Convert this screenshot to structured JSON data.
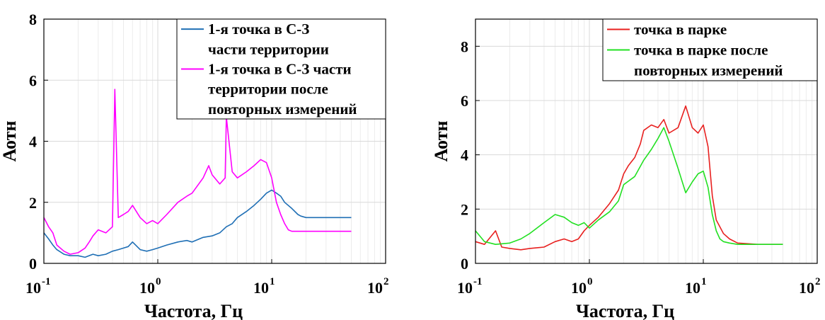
{
  "chart_data": [
    {
      "type": "line",
      "xlabel": "Частота, Гц",
      "ylabel": "Аотн",
      "xscale": "log",
      "xlim": [
        0.1,
        100
      ],
      "ylim": [
        0,
        8
      ],
      "grid": true,
      "legend_position": "top-right",
      "x_ticks": [
        {
          "base": "10",
          "exp": "-1",
          "value": 0.1
        },
        {
          "base": "10",
          "exp": "0",
          "value": 1
        },
        {
          "base": "10",
          "exp": "1",
          "value": 10
        },
        {
          "base": "10",
          "exp": "2",
          "value": 100
        }
      ],
      "y_ticks": [
        {
          "label": "0",
          "value": 0
        },
        {
          "label": "2",
          "value": 2
        },
        {
          "label": "4",
          "value": 4
        },
        {
          "label": "6",
          "value": 6
        },
        {
          "label": "8",
          "value": 8
        }
      ],
      "series": [
        {
          "name_lines": [
            "1-я точка в С-З",
            "части территории"
          ],
          "color": "#1f6fb5",
          "x": [
            0.1,
            0.11,
            0.12,
            0.13,
            0.15,
            0.17,
            0.2,
            0.23,
            0.27,
            0.3,
            0.35,
            0.4,
            0.45,
            0.5,
            0.55,
            0.6,
            0.7,
            0.8,
            0.9,
            1.0,
            1.2,
            1.5,
            1.8,
            2.0,
            2.5,
            3.0,
            3.5,
            4.0,
            4.5,
            5.0,
            6.0,
            7.0,
            8.0,
            9.0,
            10.0,
            11.0,
            12.0,
            13.0,
            15.0,
            17.0,
            18.0,
            20.0,
            30.0,
            50.0
          ],
          "y": [
            1.0,
            0.8,
            0.6,
            0.45,
            0.3,
            0.25,
            0.25,
            0.2,
            0.3,
            0.25,
            0.3,
            0.4,
            0.45,
            0.5,
            0.55,
            0.7,
            0.45,
            0.4,
            0.45,
            0.5,
            0.6,
            0.7,
            0.75,
            0.7,
            0.85,
            0.9,
            1.0,
            1.2,
            1.3,
            1.5,
            1.7,
            1.9,
            2.1,
            2.3,
            2.4,
            2.3,
            2.2,
            2.0,
            1.8,
            1.6,
            1.55,
            1.5,
            1.5,
            1.5
          ]
        },
        {
          "name_lines": [
            "1-я точка в С-З части",
            "территории после",
            "повторных измерений"
          ],
          "color": "#ff00ff",
          "x": [
            0.1,
            0.11,
            0.12,
            0.13,
            0.15,
            0.17,
            0.2,
            0.23,
            0.25,
            0.27,
            0.3,
            0.35,
            0.4,
            0.42,
            0.45,
            0.5,
            0.55,
            0.6,
            0.7,
            0.8,
            0.9,
            1.0,
            1.2,
            1.5,
            1.8,
            2.0,
            2.5,
            2.8,
            3.0,
            3.5,
            3.9,
            4.0,
            4.5,
            5.0,
            6.0,
            7.0,
            8.0,
            9.0,
            10.0,
            11.0,
            12.0,
            13.0,
            14.0,
            15.0,
            17.0,
            20.0,
            30.0,
            50.0
          ],
          "y": [
            1.5,
            1.2,
            1.0,
            0.6,
            0.4,
            0.3,
            0.35,
            0.5,
            0.7,
            0.9,
            1.1,
            1.0,
            1.2,
            5.7,
            1.5,
            1.6,
            1.7,
            1.9,
            1.5,
            1.3,
            1.4,
            1.3,
            1.6,
            2.0,
            2.2,
            2.3,
            2.8,
            3.2,
            2.9,
            2.6,
            2.8,
            4.8,
            3.0,
            2.8,
            3.0,
            3.2,
            3.4,
            3.3,
            2.8,
            2.0,
            1.6,
            1.3,
            1.1,
            1.05,
            1.05,
            1.05,
            1.05,
            1.05
          ]
        }
      ]
    },
    {
      "type": "line",
      "xlabel": "Частота, Гц",
      "ylabel": "Аотн",
      "xscale": "log",
      "xlim": [
        0.1,
        100
      ],
      "ylim": [
        0,
        9
      ],
      "grid": true,
      "legend_position": "top-right",
      "x_ticks": [
        {
          "base": "10",
          "exp": "-1",
          "value": 0.1
        },
        {
          "base": "10",
          "exp": "0",
          "value": 1
        },
        {
          "base": "10",
          "exp": "1",
          "value": 10
        },
        {
          "base": "10",
          "exp": "2",
          "value": 100
        }
      ],
      "y_ticks": [
        {
          "label": "0",
          "value": 0
        },
        {
          "label": "2",
          "value": 2
        },
        {
          "label": "4",
          "value": 4
        },
        {
          "label": "6",
          "value": 6
        },
        {
          "label": "8",
          "value": 8
        }
      ],
      "series": [
        {
          "name_lines": [
            "точка в парке"
          ],
          "color": "#e8201f",
          "x": [
            0.1,
            0.12,
            0.15,
            0.17,
            0.2,
            0.25,
            0.3,
            0.4,
            0.5,
            0.6,
            0.7,
            0.8,
            0.9,
            1.0,
            1.2,
            1.5,
            1.8,
            2.0,
            2.2,
            2.5,
            2.8,
            3.0,
            3.5,
            4.0,
            4.5,
            5.0,
            6.0,
            7.0,
            8.0,
            9.0,
            10.0,
            11.0,
            12.0,
            13.0,
            15.0,
            17.0,
            20.0,
            30.0,
            50.0
          ],
          "y": [
            0.8,
            0.7,
            1.2,
            0.6,
            0.55,
            0.5,
            0.55,
            0.6,
            0.8,
            0.9,
            0.8,
            0.9,
            1.2,
            1.4,
            1.7,
            2.2,
            2.7,
            3.3,
            3.6,
            3.9,
            4.4,
            4.9,
            5.1,
            5.0,
            5.3,
            4.8,
            5.0,
            5.8,
            5.0,
            4.8,
            5.1,
            4.3,
            2.5,
            1.6,
            1.1,
            0.9,
            0.75,
            0.7,
            0.7
          ]
        },
        {
          "name_lines": [
            "точка в парке после",
            "повторных измерений"
          ],
          "color": "#22e022",
          "x": [
            0.1,
            0.12,
            0.15,
            0.2,
            0.25,
            0.3,
            0.4,
            0.5,
            0.6,
            0.7,
            0.8,
            0.9,
            1.0,
            1.2,
            1.5,
            1.8,
            2.0,
            2.5,
            3.0,
            3.5,
            4.0,
            4.5,
            5.0,
            6.0,
            7.0,
            8.0,
            9.0,
            10.0,
            11.0,
            12.0,
            13.0,
            14.0,
            15.0,
            17.0,
            20.0,
            30.0,
            50.0
          ],
          "y": [
            1.2,
            0.8,
            0.7,
            0.75,
            0.9,
            1.1,
            1.5,
            1.8,
            1.7,
            1.5,
            1.4,
            1.5,
            1.3,
            1.6,
            1.9,
            2.3,
            2.9,
            3.2,
            3.8,
            4.2,
            4.6,
            5.0,
            4.5,
            3.5,
            2.6,
            3.0,
            3.3,
            3.4,
            2.8,
            1.8,
            1.2,
            0.9,
            0.8,
            0.75,
            0.7,
            0.7,
            0.7
          ]
        }
      ]
    }
  ]
}
